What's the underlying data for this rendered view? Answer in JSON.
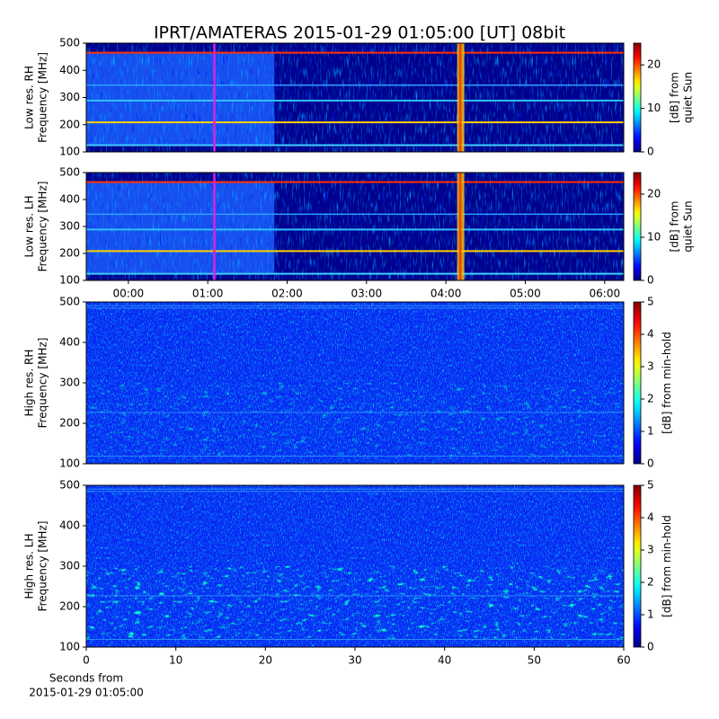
{
  "chart_data": [
    {
      "type": "heatmap",
      "title": "IPRT/AMATERAS 2015-01-29 01:05:00 [UT]   08bit",
      "ylabel": [
        "Low res. RH",
        "Frequency [MHz]"
      ],
      "xlim": [
        -0.53,
        6.24
      ],
      "ylim": [
        100,
        500
      ],
      "yticks": [
        100,
        200,
        300,
        400,
        500
      ],
      "marker_x": 1.0833,
      "marker_color": "#e020e0",
      "colorbar": {
        "label": [
          "[dB] from",
          "quiet Sun"
        ],
        "colormap": "jet",
        "lim": [
          0,
          25
        ],
        "ticks": [
          0,
          10,
          20
        ]
      }
    },
    {
      "type": "heatmap",
      "ylabel": [
        "Low res. LH",
        "Frequency [MHz]"
      ],
      "xlim": [
        -0.53,
        6.24
      ],
      "ylim": [
        100,
        500
      ],
      "yticks": [
        100,
        200,
        300,
        400,
        500
      ],
      "xticks": [
        {
          "value": 0,
          "label": "00:00"
        },
        {
          "value": 1,
          "label": "01:00"
        },
        {
          "value": 2,
          "label": "02:00"
        },
        {
          "value": 3,
          "label": "03:00"
        },
        {
          "value": 4,
          "label": "04:00"
        },
        {
          "value": 5,
          "label": "05:00"
        },
        {
          "value": 6,
          "label": "06:00"
        }
      ],
      "marker_x": 1.0833,
      "marker_color": "#e020e0",
      "colorbar": {
        "label": [
          "[dB] from",
          "quiet Sun"
        ],
        "colormap": "jet",
        "lim": [
          0,
          25
        ],
        "ticks": [
          0,
          10,
          20
        ]
      }
    },
    {
      "type": "heatmap",
      "ylabel": [
        "High res. RH",
        "Frequency [MHz]"
      ],
      "xlim": [
        0,
        60
      ],
      "ylim": [
        100,
        500
      ],
      "yticks": [
        100,
        200,
        300,
        400,
        500
      ],
      "colorbar": {
        "label": [
          "[dB] from min-hold"
        ],
        "colormap": "jet",
        "lim": [
          0,
          5
        ],
        "ticks": [
          0,
          1,
          2,
          3,
          4,
          5
        ]
      }
    },
    {
      "type": "heatmap",
      "ylabel": [
        "High res. LH",
        "Frequency [MHz]"
      ],
      "xlabel": [
        "Seconds from",
        "2015-01-29 01:05:00"
      ],
      "xlim": [
        0,
        60
      ],
      "ylim": [
        100,
        500
      ],
      "yticks": [
        100,
        200,
        300,
        400,
        500
      ],
      "xticks": [
        0,
        10,
        20,
        30,
        40,
        50,
        60
      ],
      "colorbar": {
        "label": [
          "[dB] from min-hold"
        ],
        "colormap": "jet",
        "lim": [
          0,
          5
        ],
        "ticks": [
          0,
          1,
          2,
          3,
          4,
          5
        ]
      }
    }
  ]
}
